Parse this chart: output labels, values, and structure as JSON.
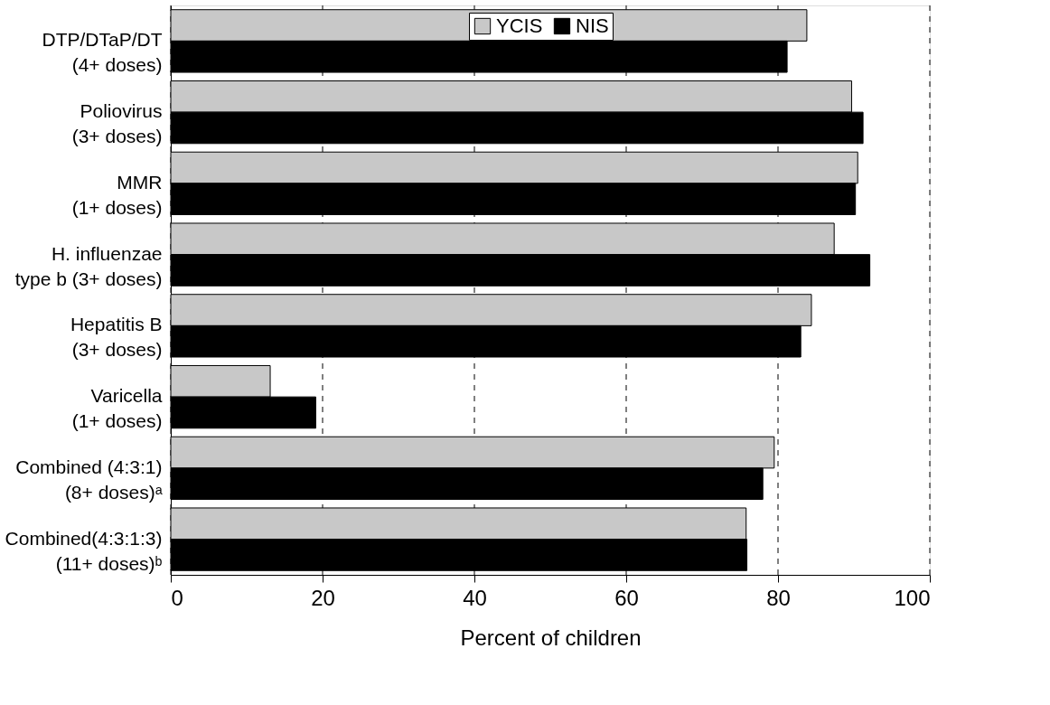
{
  "chart_data": {
    "type": "bar",
    "orientation": "horizontal",
    "xlabel": "Percent of children",
    "categories": [
      "DTP/DTaP/DT\n(4+ doses)",
      "Poliovirus\n(3+ doses)",
      "MMR\n(1+ doses)",
      "H. influenzae\ntype b (3+ doses)",
      "Hepatitis B\n(3+ doses)",
      "Varicella\n(1+ doses)",
      "Combined (4:3:1)\n(8+ doses)ᵃ",
      "Combined(4:3:1:3)\n(11+ doses)ᵇ"
    ],
    "series": [
      {
        "name": "YCIS",
        "color": "#c8c8c8",
        "values": [
          83.8,
          89.7,
          90.5,
          87.4,
          84.4,
          13.1,
          79.5,
          75.8
        ]
      },
      {
        "name": "NIS",
        "color": "#000000",
        "values": [
          81.2,
          91.2,
          90.2,
          92.1,
          83.0,
          19.1,
          78.0,
          75.9
        ]
      }
    ],
    "xlim": [
      0,
      100
    ],
    "xticks": [
      0,
      20,
      40,
      60,
      80,
      100
    ],
    "grid": "x",
    "legend": "top"
  }
}
